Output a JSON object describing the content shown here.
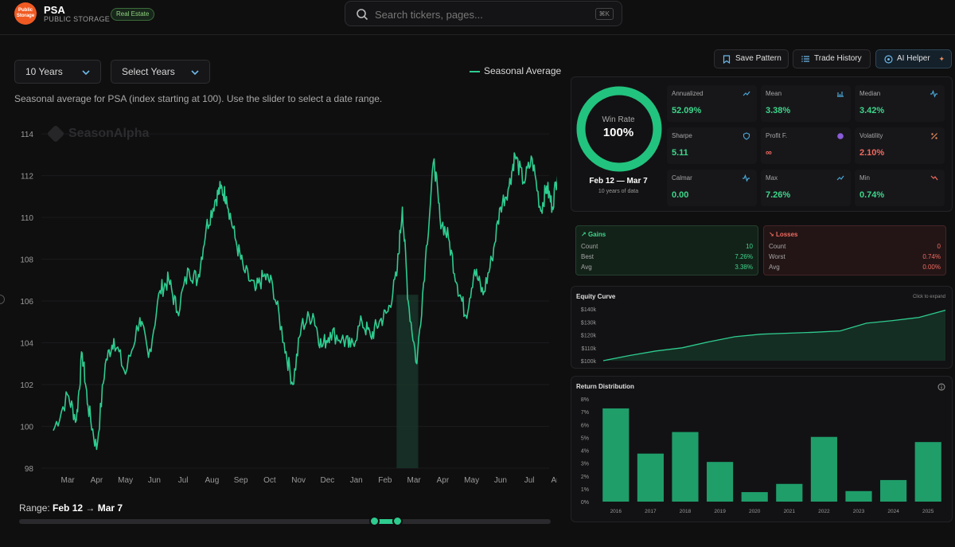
{
  "header": {
    "logo_text": "Public Storage",
    "ticker": "PSA",
    "company": "PUBLIC STORAGE",
    "sector_badge": "Real Estate",
    "search_placeholder": "Search tickers, pages...",
    "search_shortcut": "⌘K"
  },
  "controls": {
    "period_select": "10 Years",
    "years_select": "Select Years",
    "legend_label": "Seasonal Average",
    "description": "Seasonal average for PSA (index starting at 100). Use the slider to select a date range.",
    "watermark": "SeasonAlpha"
  },
  "range": {
    "label": "Range:",
    "start": "Feb 12",
    "arrow": "→",
    "end": "Mar 7",
    "slider_start_fraction": 0.668,
    "slider_end_fraction": 0.711
  },
  "toolbar": {
    "save_pattern": "Save Pattern",
    "trade_history": "Trade History",
    "ai_helper": "AI Helper"
  },
  "stats": {
    "win_rate_label": "Win Rate",
    "win_rate_value": "100%",
    "win_rate_fraction": 1.0,
    "period": "Feb 12 — Mar 7",
    "period_sub": "10 years of data",
    "metrics": [
      {
        "label": "Annualized",
        "value": "52.09%",
        "icon": "trend-up-icon",
        "tone": "green"
      },
      {
        "label": "Mean",
        "value": "3.38%",
        "icon": "bar-chart-icon",
        "tone": "green"
      },
      {
        "label": "Median",
        "value": "3.42%",
        "icon": "pulse-icon",
        "tone": "green"
      },
      {
        "label": "Sharpe",
        "value": "5.11",
        "icon": "shield-icon",
        "tone": "green"
      },
      {
        "label": "Profit F.",
        "value": "∞",
        "icon": "circle-icon",
        "tone": "red"
      },
      {
        "label": "Volatility",
        "value": "2.10%",
        "icon": "percent-icon",
        "tone": "red"
      },
      {
        "label": "Calmar",
        "value": "0.00",
        "icon": "pulse-icon",
        "tone": "green"
      },
      {
        "label": "Max",
        "value": "7.26%",
        "icon": "trend-up-icon",
        "tone": "green"
      },
      {
        "label": "Min",
        "value": "0.74%",
        "icon": "trend-down-icon",
        "tone": "green"
      }
    ]
  },
  "gains": {
    "title": "Gains",
    "rows": [
      {
        "label": "Count",
        "value": "10"
      },
      {
        "label": "Best",
        "value": "7.26%"
      },
      {
        "label": "Avg",
        "value": "3.38%"
      }
    ]
  },
  "losses": {
    "title": "Losses",
    "rows": [
      {
        "label": "Count",
        "value": "0"
      },
      {
        "label": "Worst",
        "value": "0.74%"
      },
      {
        "label": "Avg",
        "value": "0.00%"
      }
    ]
  },
  "equity": {
    "title": "Equity Curve",
    "hint": "Click to expand",
    "y_ticks": [
      "$140k",
      "$130k",
      "$120k",
      "$110k",
      "$100k"
    ],
    "ylim": [
      100000,
      140000
    ],
    "values": [
      100000,
      104000,
      107500,
      110000,
      114500,
      118500,
      120500,
      121200,
      122000,
      123000,
      129000,
      131000,
      133500,
      139000
    ]
  },
  "distribution": {
    "title": "Return Distribution",
    "y_ticks": [
      "8%",
      "7%",
      "6%",
      "5%",
      "4%",
      "3%",
      "2%",
      "1%",
      "0%"
    ]
  },
  "colors": {
    "accent": "#2ecc8f",
    "bar": "#1f9e6a",
    "positive": "#3ed68a",
    "negative": "#f06a5f"
  },
  "chart_data": [
    {
      "type": "line",
      "title": "Seasonal Average",
      "xlabel": "",
      "ylabel": "",
      "x_ticks": [
        "Mar",
        "Apr",
        "May",
        "Jun",
        "Jul",
        "Aug",
        "Sep",
        "Oct",
        "Nov",
        "Dec",
        "Jan",
        "Feb",
        "Mar",
        "Apr",
        "May",
        "Jun",
        "Jul",
        "Aug"
      ],
      "y_ticks": [
        98,
        100,
        102,
        104,
        106,
        108,
        110,
        112,
        114
      ],
      "ylim": [
        98,
        114.5
      ],
      "highlight_range": [
        "Feb 12",
        "Mar 7"
      ],
      "keypoints": [
        [
          0,
          99.8
        ],
        [
          0.5,
          101.5
        ],
        [
          0.8,
          100.3
        ],
        [
          1.0,
          103.5
        ],
        [
          1.2,
          101.0
        ],
        [
          1.5,
          98.9
        ],
        [
          1.8,
          103.0
        ],
        [
          2.1,
          104.2
        ],
        [
          2.5,
          102.5
        ],
        [
          3.0,
          105.2
        ],
        [
          3.3,
          103.3
        ],
        [
          3.7,
          106.5
        ],
        [
          4.0,
          107.0
        ],
        [
          4.3,
          105.5
        ],
        [
          4.7,
          107.5
        ],
        [
          5.0,
          107.0
        ],
        [
          5.3,
          109.5
        ],
        [
          5.6,
          110.8
        ],
        [
          5.8,
          111.4
        ],
        [
          6.0,
          111.0
        ],
        [
          6.3,
          109.0
        ],
        [
          6.6,
          107.5
        ],
        [
          7.0,
          106.5
        ],
        [
          7.3,
          107.2
        ],
        [
          7.6,
          106.8
        ],
        [
          8.0,
          104.0
        ],
        [
          8.3,
          102.0
        ],
        [
          8.6,
          104.8
        ],
        [
          9.0,
          105.4
        ],
        [
          9.3,
          103.8
        ],
        [
          9.6,
          104.5
        ],
        [
          10.0,
          104.2
        ],
        [
          10.3,
          103.8
        ],
        [
          10.7,
          105.0
        ],
        [
          11.0,
          104.3
        ],
        [
          11.3,
          105.0
        ],
        [
          11.6,
          105.5
        ],
        [
          11.9,
          107.2
        ],
        [
          12.1,
          110.5
        ],
        [
          12.3,
          106.0
        ],
        [
          12.6,
          103.0
        ],
        [
          12.9,
          108.0
        ],
        [
          13.2,
          112.8
        ],
        [
          13.4,
          110.0
        ],
        [
          13.7,
          109.0
        ],
        [
          14.0,
          106.8
        ],
        [
          14.3,
          105.3
        ],
        [
          14.6,
          107.5
        ],
        [
          14.9,
          106.3
        ],
        [
          15.2,
          108.0
        ],
        [
          15.5,
          110.5
        ],
        [
          15.8,
          111.5
        ],
        [
          16.0,
          113.0
        ],
        [
          16.3,
          111.7
        ],
        [
          16.6,
          112.8
        ],
        [
          16.9,
          110.3
        ],
        [
          17.1,
          111.5
        ],
        [
          17.3,
          110.5
        ],
        [
          17.5,
          112.4
        ],
        [
          17.7,
          112.8
        ]
      ]
    },
    {
      "type": "line",
      "title": "Equity Curve",
      "xlabel": "",
      "ylabel": "",
      "x": [
        1,
        2,
        3,
        4,
        5,
        6,
        7,
        8,
        9,
        10,
        11,
        12,
        13,
        14
      ],
      "y": [
        100000,
        104000,
        107500,
        110000,
        114500,
        118500,
        120500,
        121200,
        122000,
        123000,
        129000,
        131000,
        133500,
        139000
      ],
      "ylim": [
        100000,
        140000
      ]
    },
    {
      "type": "bar",
      "title": "Return Distribution",
      "xlabel": "",
      "ylabel": "",
      "categories": [
        "2016",
        "2017",
        "2018",
        "2019",
        "2020",
        "2021",
        "2022",
        "2023",
        "2024",
        "2025"
      ],
      "values": [
        7.26,
        3.74,
        5.42,
        3.09,
        0.74,
        1.38,
        5.04,
        0.82,
        1.68,
        4.64
      ],
      "ylim": [
        0,
        8
      ]
    }
  ]
}
